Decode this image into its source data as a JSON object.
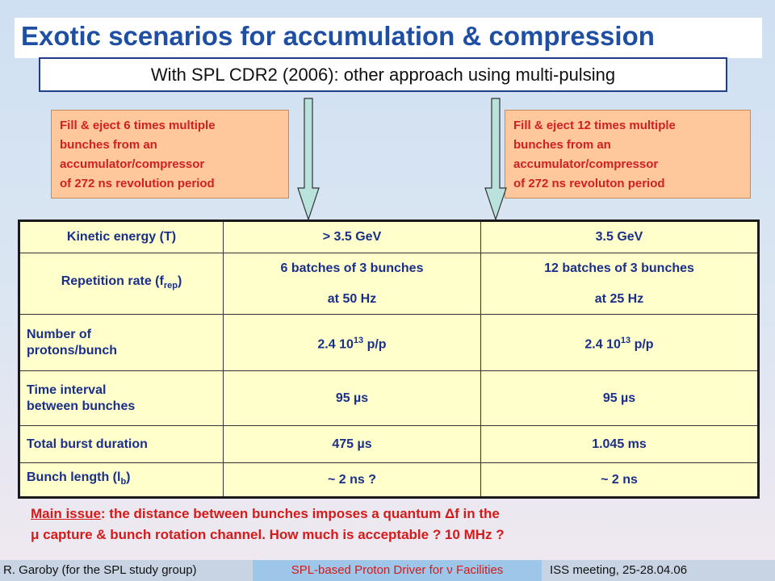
{
  "slide": {
    "title": "Exotic scenarios for accumulation & compression",
    "subtitle": "With SPL CDR2 (2006): other approach using multi-pulsing"
  },
  "notes": {
    "left": [
      "Fill & eject 6 times multiple",
      "bunches from an",
      "accumulator/compressor",
      "of 272 ns revolution period"
    ],
    "right": [
      "Fill & eject 12 times multiple",
      "bunches from an",
      "accumulator/compressor",
      "of 272 ns revoluton period"
    ]
  },
  "table": {
    "rows": [
      {
        "label": "Kinetic energy (T)",
        "col1": "> 3.5 GeV",
        "col2": "3.5 GeV"
      },
      {
        "label": "Repetition rate (f",
        "label_sub": "rep",
        "label_end": ")",
        "col1_l1": "6 batches of 3 bunches",
        "col1_l2": "at 50 Hz",
        "col2_l1": "12 batches of 3 bunches",
        "col2_l2": "at 25 Hz"
      },
      {
        "label_l1": "Number of",
        "label_l2": "protons/bunch",
        "col1_base": "2.4 10",
        "col1_exp": "13",
        "col1_unit": " p/p",
        "col2_base": "2.4 10",
        "col2_exp": "13",
        "col2_unit": " p/p"
      },
      {
        "label_l1": "Time interval",
        "label_l2": "between bunches",
        "col1": "95 µs",
        "col2": "95 µs"
      },
      {
        "label": "Total burst duration",
        "col1": "475 µs",
        "col2": "1.045 ms"
      },
      {
        "label": "Bunch length (l",
        "label_sub": "b",
        "label_end": ")",
        "col1": "~ 2 ns ?",
        "col2": "~ 2 ns"
      }
    ]
  },
  "issue": {
    "lead": "Main issue",
    "line1_rest": ": the distance between bunches imposes a quantum Δf in the",
    "line2": "μ capture & bunch rotation channel. How much is acceptable ? 10 MHz ?"
  },
  "footer": {
    "author": "R. Garoby (for the SPL study group)",
    "event": "SPL-based Proton Driver for ν Facilities",
    "meeting": "ISS meeting, 25-28.04.06"
  },
  "colors": {
    "title": "#1f4fa3",
    "note_fill": "#ffc79c",
    "note_text": "#d02020",
    "table_fill": "#ffffcc",
    "table_text": "#1a2f8a",
    "arrow_fill": "#b9e2dc"
  }
}
